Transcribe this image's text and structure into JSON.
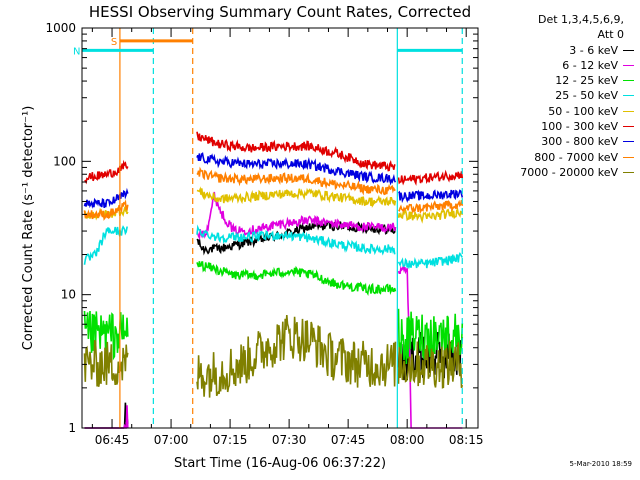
{
  "chart_data": {
    "type": "line",
    "title": "HESSI Observing Summary Count Rates, Corrected",
    "xlabel": "Start Time (16-Aug-06 06:37:22)",
    "ylabel": "Corrected Count Rate (s⁻¹ detector⁻¹)",
    "yscale": "log",
    "xlim": [
      "06:37:22",
      "08:18:00"
    ],
    "ylim": [
      1,
      1000
    ],
    "x_ticks": [
      "06:45",
      "07:00",
      "07:15",
      "07:30",
      "07:45",
      "08:00",
      "08:15"
    ],
    "y_ticks": [
      "1",
      "10",
      "100",
      "1000"
    ],
    "grid": false,
    "legend_position": "right-outside",
    "legend_header": [
      "Det 1,3,4,5,6,9,",
      "Att 0"
    ],
    "gaps": [
      [
        "06:49:00",
        "07:06:30"
      ],
      [
        "07:57:00",
        "07:57:45"
      ]
    ],
    "series": [
      {
        "name": "3 - 6 keV",
        "color": "#000000",
        "points": [
          [
            "06:38",
            "1"
          ],
          [
            "06:48",
            "1"
          ],
          [
            "07:06:30",
            "26"
          ],
          [
            "07:08",
            "22"
          ],
          [
            "07:12",
            "22"
          ],
          [
            "07:20",
            "25"
          ],
          [
            "07:28",
            "28"
          ],
          [
            "07:35",
            "32"
          ],
          [
            "07:40",
            "33"
          ],
          [
            "07:48",
            "32"
          ],
          [
            "07:55",
            "31"
          ],
          [
            "07:57",
            "30"
          ],
          [
            "07:57:30",
            "4"
          ],
          [
            "07:59",
            "3"
          ],
          [
            "08:01",
            "3.5"
          ],
          [
            "08:10",
            "3.5"
          ],
          [
            "08:14",
            "3.5"
          ]
        ]
      },
      {
        "name": "6 - 12 keV",
        "color": "#e000e0",
        "points": [
          [
            "06:38",
            "1"
          ],
          [
            "06:48",
            "1"
          ],
          [
            "07:06:30",
            "28"
          ],
          [
            "07:09",
            "30"
          ],
          [
            "07:11",
            "55"
          ],
          [
            "07:13",
            "40"
          ],
          [
            "07:16",
            "30"
          ],
          [
            "07:22",
            "31"
          ],
          [
            "07:28",
            "34"
          ],
          [
            "07:35",
            "36"
          ],
          [
            "07:42",
            "34"
          ],
          [
            "07:50",
            "32"
          ],
          [
            "07:57",
            "32"
          ],
          [
            "07:57:45",
            "15"
          ],
          [
            "08:00",
            "15"
          ],
          [
            "08:01",
            "1"
          ],
          [
            "08:14",
            "1"
          ]
        ]
      },
      {
        "name": "12 - 25 keV",
        "color": "#00e000",
        "points": [
          [
            "06:38",
            "5"
          ],
          [
            "06:48",
            "5"
          ],
          [
            "07:06:30",
            "17"
          ],
          [
            "07:10",
            "16"
          ],
          [
            "07:16",
            "14"
          ],
          [
            "07:22",
            "14"
          ],
          [
            "07:30",
            "15"
          ],
          [
            "07:36",
            "14"
          ],
          [
            "07:42",
            "12"
          ],
          [
            "07:50",
            "11"
          ],
          [
            "07:57",
            "11"
          ],
          [
            "07:58",
            "4.5"
          ],
          [
            "08:00",
            "4.5"
          ],
          [
            "08:01",
            "5"
          ],
          [
            "08:10",
            "5"
          ],
          [
            "08:14",
            "5"
          ]
        ]
      },
      {
        "name": "25 - 50 keV",
        "color": "#00e0e0",
        "points": [
          [
            "06:38",
            "18"
          ],
          [
            "06:41",
            "20"
          ],
          [
            "06:43",
            "28"
          ],
          [
            "06:44",
            "30"
          ],
          [
            "07:06:30",
            "30"
          ],
          [
            "07:12",
            "27"
          ],
          [
            "07:20",
            "27"
          ],
          [
            "07:28",
            "28"
          ],
          [
            "07:34",
            "27"
          ],
          [
            "07:42",
            "24"
          ],
          [
            "07:50",
            "22"
          ],
          [
            "07:57",
            "22"
          ],
          [
            "07:57:45",
            "17"
          ],
          [
            "08:05",
            "17"
          ],
          [
            "08:14",
            "19"
          ]
        ]
      },
      {
        "name": "50 - 100 keV",
        "color": "#e0c000",
        "points": [
          [
            "06:38",
            "40"
          ],
          [
            "06:44",
            "40"
          ],
          [
            "07:06:30",
            "60"
          ],
          [
            "07:12",
            "52"
          ],
          [
            "07:20",
            "54"
          ],
          [
            "07:28",
            "57"
          ],
          [
            "07:35",
            "58"
          ],
          [
            "07:42",
            "54"
          ],
          [
            "07:50",
            "50"
          ],
          [
            "07:57",
            "50"
          ],
          [
            "07:57:45",
            "40"
          ],
          [
            "08:05",
            "38"
          ],
          [
            "08:14",
            "42"
          ]
        ]
      },
      {
        "name": "100 - 300 keV",
        "color": "#e00000",
        "points": [
          [
            "06:38",
            "75"
          ],
          [
            "06:44",
            "80"
          ],
          [
            "07:06:30",
            "155"
          ],
          [
            "07:12",
            "135"
          ],
          [
            "07:20",
            "125"
          ],
          [
            "07:28",
            "130"
          ],
          [
            "07:35",
            "130"
          ],
          [
            "07:42",
            "115"
          ],
          [
            "07:50",
            "95"
          ],
          [
            "07:57",
            "90"
          ],
          [
            "07:57:45",
            "72"
          ],
          [
            "08:05",
            "75"
          ],
          [
            "08:14",
            "80"
          ]
        ]
      },
      {
        "name": "300 - 800 keV",
        "color": "#0000e0",
        "points": [
          [
            "06:38",
            "48"
          ],
          [
            "06:44",
            "48"
          ],
          [
            "07:06:30",
            "108"
          ],
          [
            "07:12",
            "100"
          ],
          [
            "07:20",
            "95"
          ],
          [
            "07:28",
            "96"
          ],
          [
            "07:35",
            "95"
          ],
          [
            "07:42",
            "85"
          ],
          [
            "07:50",
            "76"
          ],
          [
            "07:57",
            "74"
          ],
          [
            "07:57:45",
            "55"
          ],
          [
            "08:05",
            "55"
          ],
          [
            "08:14",
            "58"
          ]
        ]
      },
      {
        "name": "800 - 7000 keV",
        "color": "#ff8000",
        "points": [
          [
            "06:38",
            "40"
          ],
          [
            "06:44",
            "40"
          ],
          [
            "07:06:30",
            "82"
          ],
          [
            "07:12",
            "75"
          ],
          [
            "07:20",
            "73"
          ],
          [
            "07:28",
            "75"
          ],
          [
            "07:35",
            "74"
          ],
          [
            "07:42",
            "67"
          ],
          [
            "07:50",
            "62"
          ],
          [
            "07:57",
            "60"
          ],
          [
            "07:57:45",
            "44"
          ],
          [
            "08:05",
            "45"
          ],
          [
            "08:14",
            "48"
          ]
        ]
      },
      {
        "name": "7000 - 20000 keV",
        "color": "#808000",
        "points": [
          [
            "06:38",
            "3"
          ],
          [
            "06:48",
            "3"
          ],
          [
            "07:06:30",
            "2.5"
          ],
          [
            "07:12",
            "2.6"
          ],
          [
            "07:18",
            "3"
          ],
          [
            "07:24",
            "4"
          ],
          [
            "07:30",
            "5"
          ],
          [
            "07:36",
            "4.5"
          ],
          [
            "07:40",
            "3.5"
          ],
          [
            "07:48",
            "3"
          ],
          [
            "07:57",
            "3"
          ],
          [
            "08:00",
            "3"
          ],
          [
            "08:05",
            "3"
          ],
          [
            "08:14",
            "3"
          ]
        ]
      }
    ],
    "flag_bars": [
      {
        "label": "S",
        "color": "#ff8000",
        "start": "06:47:00",
        "end": "07:05:30",
        "level": 800
      },
      {
        "label": "N",
        "color": "#00e0e0",
        "start": "06:37:22",
        "end": "06:55:30",
        "level": 680
      },
      {
        "label": "",
        "color": "#00e0e0",
        "start": "07:57:30",
        "end": "08:14:00",
        "level": 680
      }
    ],
    "vertical_markers": [
      {
        "time": "06:47:00",
        "color": "#ff8000",
        "style": "solid"
      },
      {
        "time": "06:55:30",
        "color": "#00e0e0",
        "style": "dashed"
      },
      {
        "time": "07:05:30",
        "color": "#ff8000",
        "style": "dashed"
      },
      {
        "time": "07:57:30",
        "color": "#00e0e0",
        "style": "solid"
      },
      {
        "time": "08:14:00",
        "color": "#00e0e0",
        "style": "dashed"
      }
    ]
  },
  "footer_stamp": "5-Mar-2010 18:59"
}
